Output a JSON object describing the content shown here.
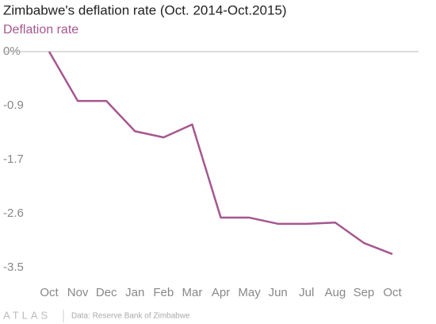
{
  "chart_data": {
    "type": "line",
    "title": "Zimbabwe's deflation rate (Oct. 2014-Oct.2015)",
    "categories": [
      "Oct",
      "Nov",
      "Dec",
      "Jan",
      "Feb",
      "Mar",
      "Apr",
      "May",
      "Jun",
      "Jul",
      "Aug",
      "Sep",
      "Oct"
    ],
    "series": [
      {
        "name": "Deflation rate",
        "color": "#a6578f",
        "values": [
          0,
          -0.8,
          -0.8,
          -1.29,
          -1.39,
          -1.18,
          -2.69,
          -2.69,
          -2.79,
          -2.79,
          -2.77,
          -3.1,
          -3.28
        ]
      }
    ],
    "ylim": [
      -3.5,
      0
    ],
    "yticks": [
      {
        "value": 0,
        "label": "0%"
      },
      {
        "value": -0.875,
        "label": "-0.9"
      },
      {
        "value": -1.75,
        "label": "-1.7"
      },
      {
        "value": -2.625,
        "label": "-2.6"
      },
      {
        "value": -3.5,
        "label": "-3.5"
      }
    ],
    "zero_line": true,
    "logo": "ATLAS",
    "source": "Data: Reserve Bank of Zimbabwe"
  }
}
